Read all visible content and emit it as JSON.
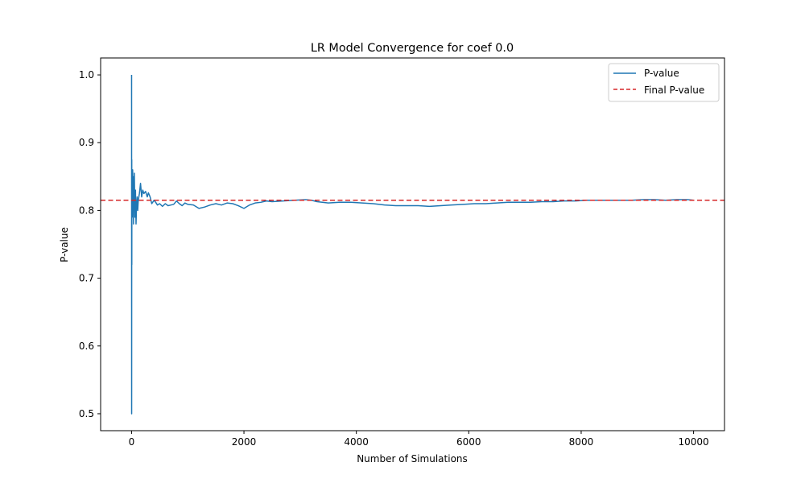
{
  "chart_data": {
    "type": "line",
    "title": "LR Model Convergence for coef 0.0",
    "xlabel": "Number of Simulations",
    "ylabel": "P-value",
    "xlim": [
      -550,
      10550
    ],
    "ylim": [
      0.475,
      1.025
    ],
    "xticks": [
      0,
      2000,
      4000,
      6000,
      8000,
      10000
    ],
    "xtick_labels": [
      "0",
      "2000",
      "4000",
      "6000",
      "8000",
      "10000"
    ],
    "yticks": [
      0.5,
      0.6,
      0.7,
      0.8,
      0.9,
      1.0
    ],
    "ytick_labels": [
      "0.5",
      "0.6",
      "0.7",
      "0.8",
      "0.9",
      "1.0"
    ],
    "grid": false,
    "legend_position": "top-right",
    "series": [
      {
        "name": "P-value",
        "color": "#1f77b4",
        "style": "solid",
        "x": [
          1,
          2,
          3,
          4,
          5,
          6,
          8,
          10,
          12,
          15,
          18,
          20,
          25,
          30,
          35,
          40,
          45,
          50,
          55,
          60,
          70,
          80,
          90,
          100,
          110,
          120,
          140,
          160,
          180,
          200,
          220,
          250,
          280,
          300,
          330,
          360,
          400,
          430,
          460,
          500,
          550,
          600,
          650,
          700,
          750,
          800,
          850,
          900,
          950,
          1000,
          1100,
          1200,
          1300,
          1400,
          1500,
          1600,
          1700,
          1800,
          1900,
          2000,
          2100,
          2200,
          2300,
          2400,
          2500,
          2700,
          2900,
          3100,
          3200,
          3300,
          3500,
          3700,
          3900,
          4100,
          4300,
          4500,
          4700,
          4900,
          5100,
          5300,
          5500,
          5700,
          5900,
          6100,
          6300,
          6500,
          6700,
          6900,
          7100,
          7300,
          7500,
          7700,
          7900,
          8100,
          8300,
          8500,
          8700,
          8900,
          9100,
          9300,
          9500,
          9700,
          9900,
          10000
        ],
        "y": [
          1.0,
          0.5,
          0.75,
          0.875,
          0.72,
          0.86,
          0.8,
          0.83,
          0.79,
          0.85,
          0.82,
          0.86,
          0.8,
          0.84,
          0.78,
          0.85,
          0.81,
          0.855,
          0.82,
          0.79,
          0.83,
          0.78,
          0.81,
          0.82,
          0.8,
          0.815,
          0.825,
          0.84,
          0.82,
          0.83,
          0.825,
          0.828,
          0.82,
          0.826,
          0.82,
          0.81,
          0.815,
          0.812,
          0.808,
          0.81,
          0.806,
          0.81,
          0.807,
          0.808,
          0.809,
          0.814,
          0.81,
          0.807,
          0.811,
          0.809,
          0.808,
          0.803,
          0.805,
          0.808,
          0.81,
          0.808,
          0.811,
          0.81,
          0.807,
          0.803,
          0.808,
          0.811,
          0.812,
          0.814,
          0.813,
          0.814,
          0.815,
          0.816,
          0.815,
          0.813,
          0.811,
          0.812,
          0.812,
          0.811,
          0.81,
          0.808,
          0.807,
          0.807,
          0.807,
          0.806,
          0.807,
          0.808,
          0.809,
          0.81,
          0.81,
          0.811,
          0.812,
          0.812,
          0.812,
          0.813,
          0.813,
          0.814,
          0.814,
          0.815,
          0.815,
          0.815,
          0.815,
          0.815,
          0.816,
          0.816,
          0.815,
          0.816,
          0.816,
          0.815
        ]
      },
      {
        "name": "Final P-value",
        "color": "#d62728",
        "style": "dashed",
        "type": "hline",
        "y": 0.815
      }
    ]
  }
}
